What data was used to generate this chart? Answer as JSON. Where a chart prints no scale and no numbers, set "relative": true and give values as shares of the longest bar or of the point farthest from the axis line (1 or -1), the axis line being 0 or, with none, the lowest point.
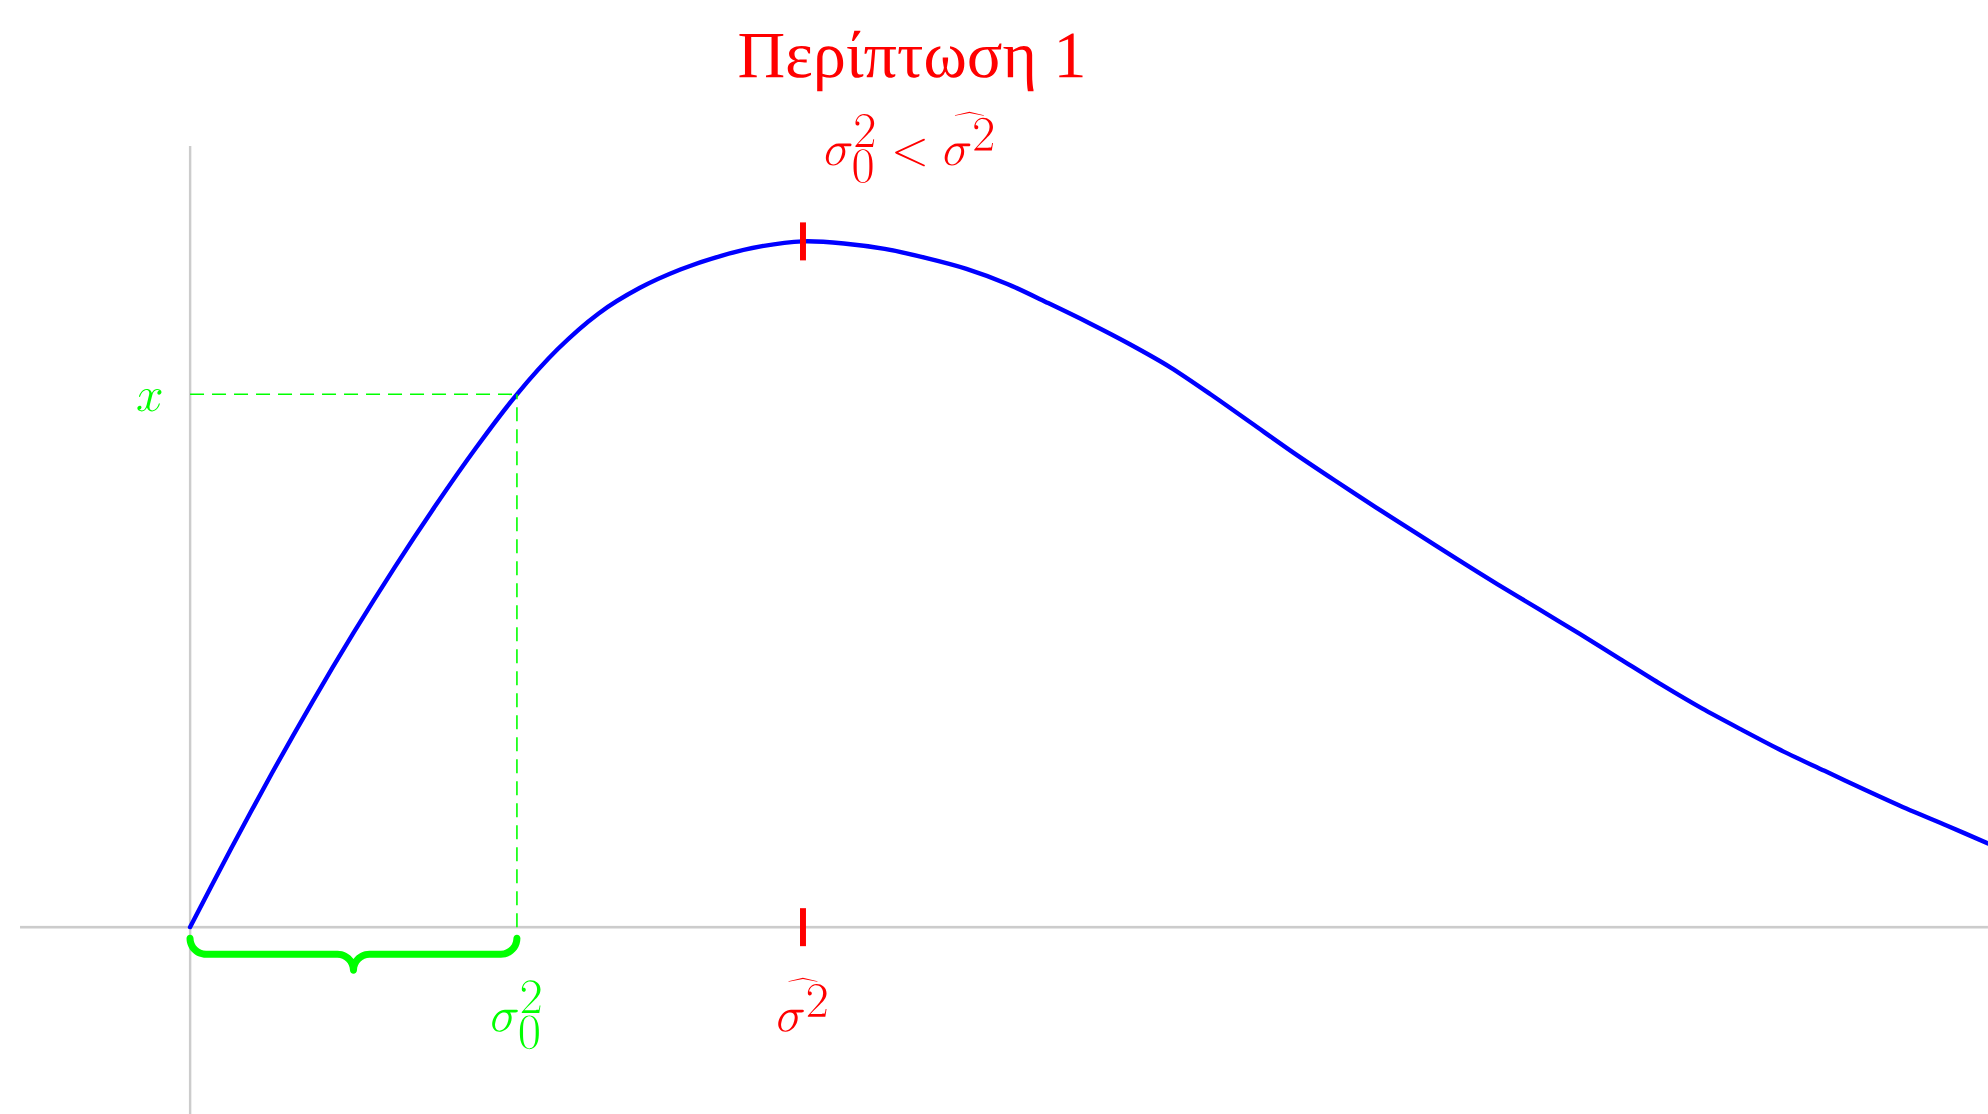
{
  "chart_data": {
    "type": "line",
    "relative": true,
    "title": "Περίπτωση 1",
    "subtitle": "\\sigma_0^2 < \\widehat{\\sigma^2}",
    "categories": [
      null,
      null,
      null,
      null,
      null,
      null,
      null,
      null,
      "\\sigma_0^2",
      null,
      null,
      null,
      null,
      null,
      null,
      "\\widehat{\\sigma^2}",
      null,
      null,
      null,
      null,
      null,
      null,
      null,
      null,
      null,
      null,
      null,
      null,
      null,
      null,
      null,
      null,
      null,
      null,
      null,
      null,
      null,
      null,
      null,
      null,
      null,
      null,
      null,
      null,
      null
    ],
    "series": [
      {
        "color": "#0000ff",
        "values": [
          0,
          0.114,
          0.224,
          0.329,
          0.429,
          0.524,
          0.614,
          0.699,
          0.777,
          0.843,
          0.895,
          0.932,
          0.959,
          0.979,
          0.993,
          1,
          0.997,
          0.989,
          0.976,
          0.96,
          0.938,
          0.91,
          0.881,
          0.85,
          0.816,
          0.776,
          0.734,
          0.692,
          0.652,
          0.613,
          0.575,
          0.537,
          0.5,
          0.464,
          0.428,
          0.391,
          0.354,
          0.319,
          0.287,
          0.256,
          0.228,
          0.2,
          0.173,
          0.148,
          0.122
        ]
      }
    ],
    "marker": "none",
    "line_style": "solid",
    "ref_lines": [
      {
        "axis": "y",
        "value": 0.777,
        "label": "x",
        "color": "#00ff00",
        "line_style": "dashed"
      },
      {
        "axis": "x",
        "value": "\\sigma_0^2",
        "color": "#00ff00",
        "line_style": "dashed"
      }
    ]
  }
}
